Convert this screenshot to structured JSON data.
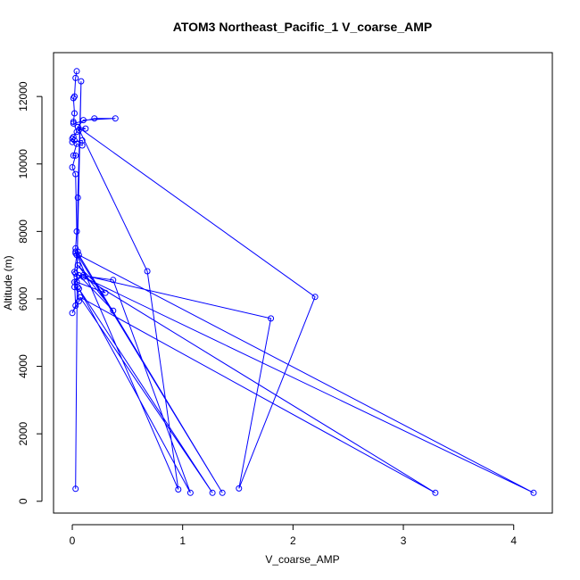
{
  "chart_data": {
    "type": "line",
    "title": "ATOM3 Northeast_Pacific_1 V_coarse_AMP",
    "xlabel": "V_coarse_AMP",
    "ylabel": "Altitude (m)",
    "xlim": [
      -0.17,
      4.35
    ],
    "ylim": [
      -350,
      13300
    ],
    "xticks": [
      0,
      1,
      2,
      3,
      4
    ],
    "yticks": [
      0,
      2000,
      4000,
      6000,
      8000,
      10000,
      12000
    ],
    "grid": false,
    "legend": "none",
    "series": [
      {
        "color": "#0000ff",
        "marker": "open-circle",
        "points": [
          [
            0.04,
            12750
          ],
          [
            0.03,
            12550
          ],
          [
            0.02,
            12000
          ],
          [
            0.01,
            11950
          ],
          [
            0.02,
            11500
          ],
          [
            0.01,
            11250
          ],
          [
            0.01,
            11200
          ],
          [
            0.2,
            11350
          ],
          [
            0.39,
            11350
          ],
          [
            0.1,
            11300
          ],
          [
            0.05,
            11100
          ],
          [
            0.12,
            11050
          ],
          [
            0.06,
            11000
          ],
          [
            0.04,
            10950
          ],
          [
            0.01,
            10800
          ],
          [
            0.0,
            10750
          ],
          [
            0.02,
            10700
          ],
          [
            0.0,
            10650
          ],
          [
            0.09,
            10700
          ],
          [
            0.09,
            10550
          ],
          [
            0.04,
            10600
          ],
          [
            0.01,
            10250
          ],
          [
            0.03,
            10250
          ],
          [
            0.0,
            9900
          ],
          [
            0.03,
            9700
          ],
          [
            0.04,
            8000
          ],
          [
            0.03,
            7500
          ],
          [
            0.05,
            7400
          ],
          [
            0.03,
            7350
          ],
          [
            0.04,
            7300
          ],
          [
            0.02,
            6800
          ],
          [
            0.03,
            6750
          ],
          [
            0.04,
            6650
          ],
          [
            0.02,
            6350
          ],
          [
            0.05,
            6350
          ],
          [
            0.06,
            5930
          ],
          [
            0.0,
            5580
          ],
          [
            0.03,
            5800
          ],
          [
            0.02,
            6500
          ],
          [
            0.1,
            6700
          ],
          [
            1.8,
            5420
          ],
          [
            1.51,
            380
          ],
          [
            2.2,
            6060
          ],
          [
            0.05,
            11100
          ],
          [
            0.68,
            6820
          ],
          [
            0.96,
            350
          ],
          [
            0.03,
            7400
          ],
          [
            1.36,
            250
          ],
          [
            0.06,
            7300
          ],
          [
            4.18,
            250
          ],
          [
            0.1,
            6650
          ],
          [
            3.29,
            250
          ],
          [
            0.07,
            6050
          ],
          [
            1.27,
            250
          ],
          [
            0.06,
            6300
          ],
          [
            1.07,
            250
          ],
          [
            0.37,
            6560
          ],
          [
            0.06,
            6700
          ],
          [
            0.37,
            5650
          ],
          [
            0.05,
            7000
          ],
          [
            0.3,
            6180
          ],
          [
            0.04,
            6500
          ],
          [
            0.08,
            12450
          ],
          [
            0.05,
            9000
          ],
          [
            0.03,
            370
          ]
        ]
      }
    ]
  }
}
